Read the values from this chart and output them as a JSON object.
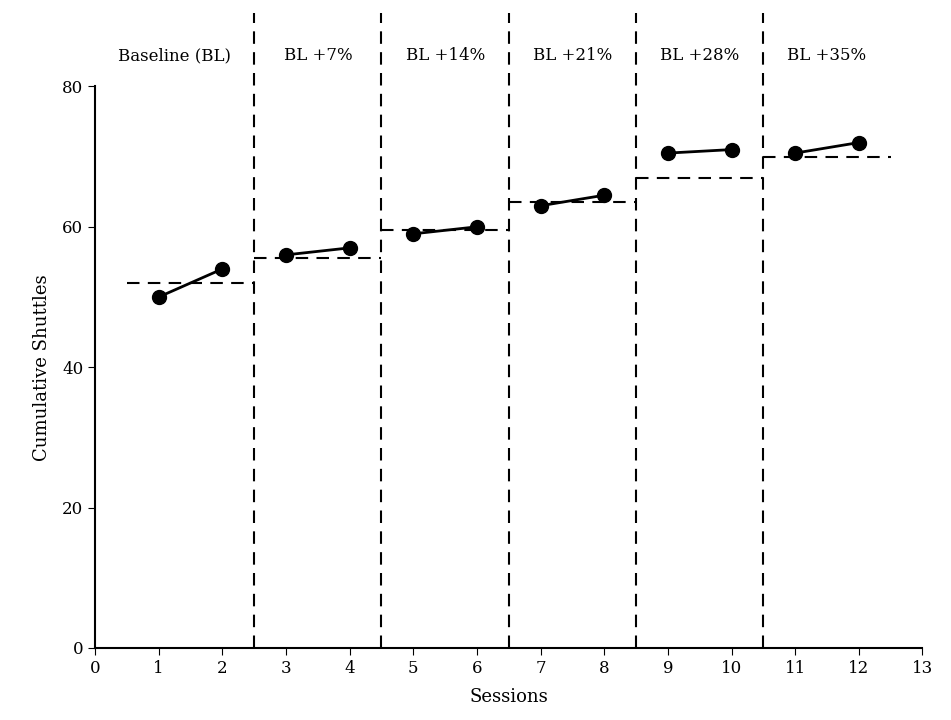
{
  "xlabel": "Sessions",
  "ylabel": "Cumulative Shuttles",
  "xlim": [
    0,
    13
  ],
  "ylim": [
    0,
    80
  ],
  "xticks": [
    0,
    1,
    2,
    3,
    4,
    5,
    6,
    7,
    8,
    9,
    10,
    11,
    12,
    13
  ],
  "yticks": [
    0,
    20,
    40,
    60,
    80
  ],
  "data_points": {
    "x": [
      1,
      2,
      3,
      4,
      5,
      6,
      7,
      8,
      9,
      10,
      11,
      12
    ],
    "y": [
      50,
      54,
      56,
      57,
      59,
      60,
      63,
      64.5,
      70.5,
      71,
      70.5,
      72
    ]
  },
  "phase_dividers": [
    2.5,
    4.5,
    6.5,
    8.5,
    10.5
  ],
  "phase_labels": [
    {
      "text": "Baseline (BL)",
      "x": 1.25
    },
    {
      "text": "BL +7%",
      "x": 3.5
    },
    {
      "text": "BL +14%",
      "x": 5.5
    },
    {
      "text": "BL +21%",
      "x": 7.5
    },
    {
      "text": "BL +28%",
      "x": 9.5
    },
    {
      "text": "BL +35%",
      "x": 11.5
    }
  ],
  "phase_dashed_lines": [
    {
      "x_start": 0.5,
      "x_end": 2.5,
      "y": 52
    },
    {
      "x_start": 2.5,
      "x_end": 4.5,
      "y": 55.5
    },
    {
      "x_start": 4.5,
      "x_end": 6.5,
      "y": 59.5
    },
    {
      "x_start": 6.5,
      "x_end": 8.5,
      "y": 63.5
    },
    {
      "x_start": 8.5,
      "x_end": 10.5,
      "y": 67
    },
    {
      "x_start": 10.5,
      "x_end": 12.5,
      "y": 70
    }
  ],
  "marker_size": 10,
  "line_color": "#000000",
  "marker_color": "#000000",
  "background_color": "#ffffff",
  "spine_color": "#000000"
}
